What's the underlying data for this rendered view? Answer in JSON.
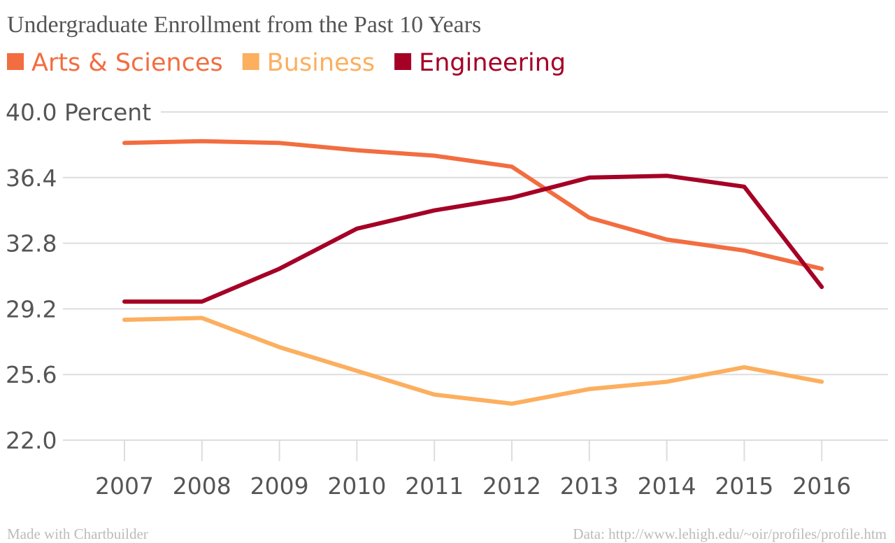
{
  "footer": {
    "left": "Made with Chartbuilder",
    "right": "Data: http://www.lehigh.edu/~oir/profiles/profile.htm"
  },
  "chart_data": {
    "type": "line",
    "title": "Undergraduate Enrollment from the Past 10 Years",
    "ylabel": "Percent",
    "ylim": [
      22.0,
      40.0
    ],
    "yticks": [
      22.0,
      25.6,
      29.2,
      32.8,
      36.4,
      40.0
    ],
    "ytick_labels": [
      "22.0",
      "25.6",
      "29.2",
      "32.8",
      "36.4",
      "40.0 Percent"
    ],
    "x": [
      "2007",
      "2008",
      "2009",
      "2010",
      "2011",
      "2012",
      "2013",
      "2014",
      "2015",
      "2016"
    ],
    "grid": true,
    "legend_position": "top-left",
    "series": [
      {
        "name": "Arts & Sciences",
        "color": "#f26d40",
        "values": [
          38.3,
          38.4,
          38.3,
          37.9,
          37.6,
          37.0,
          34.2,
          33.0,
          32.4,
          31.4
        ]
      },
      {
        "name": "Business",
        "color": "#fcaf5f",
        "values": [
          28.6,
          28.7,
          27.1,
          25.8,
          24.5,
          24.0,
          24.8,
          25.2,
          26.0,
          25.2
        ]
      },
      {
        "name": "Engineering",
        "color": "#a50026",
        "values": [
          29.6,
          29.6,
          31.4,
          33.6,
          34.6,
          35.3,
          36.4,
          36.5,
          35.9,
          30.4
        ]
      }
    ]
  }
}
